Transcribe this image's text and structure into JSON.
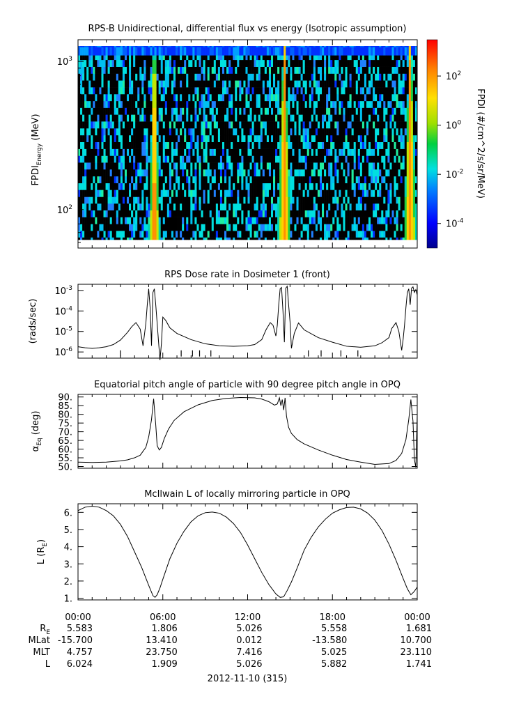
{
  "chart_data": [
    {
      "type": "heatmap",
      "title": "RPS-B  Unidirectional, differential flux vs energy (Isotropic assumption)",
      "ylabel": "FPDI",
      "ylabel_sub": "Energy",
      "ylabel_unit": " (MeV)",
      "yscale": "log",
      "ylim": [
        55,
        1400
      ],
      "yticks": [
        {
          "v": 100,
          "b": "10",
          "e": "2"
        },
        {
          "v": 1000,
          "b": "10",
          "e": "3"
        }
      ],
      "xlim_hours": [
        0,
        24
      ],
      "energy_rows_mev": [
        58,
        65,
        72,
        80,
        89,
        99,
        110,
        122,
        136,
        151,
        168,
        187,
        208,
        231,
        257,
        286,
        318,
        354,
        394,
        438,
        487,
        541,
        602,
        670,
        745,
        828,
        921,
        1025,
        1100,
        1250
      ],
      "belt_crossings_hours": [
        [
          5.4,
          5.0,
          5.8
        ],
        [
          14.6,
          14.1,
          15.05
        ],
        [
          23.5,
          23.05,
          24.0
        ]
      ],
      "colorbar": {
        "label": "FPDI (#/cm^2/s/sr/MeV)",
        "scale": "log",
        "range": [
          1e-05,
          3000.0
        ],
        "ticks": [
          {
            "v": 100.0,
            "b": "10",
            "e": "2"
          },
          {
            "v": 1,
            "b": "10",
            "e": "0"
          },
          {
            "v": 0.01,
            "b": "10",
            "e": "-2"
          },
          {
            "v": 0.0001,
            "b": "10",
            "e": "-4"
          }
        ]
      }
    },
    {
      "type": "line",
      "title": "RPS  Dose rate in Dosimeter 1 (front)",
      "ylabel": "(rads/sec)",
      "yscale": "log",
      "ylim": [
        5e-07,
        0.002
      ],
      "yticks": [
        {
          "v": 0.001,
          "b": "10",
          "e": "-3"
        },
        {
          "v": 0.0001,
          "b": "10",
          "e": "-4"
        },
        {
          "v": 1e-05,
          "b": "10",
          "e": "-5"
        },
        {
          "v": 1e-06,
          "b": "10",
          "e": "-6"
        }
      ],
      "x_hours": [
        0,
        0.5,
        1,
        1.5,
        2,
        2.5,
        3,
        3.5,
        3.8,
        4.1,
        4.4,
        4.6,
        4.8,
        4.9,
        5.0,
        5.1,
        5.2,
        5.3,
        5.4,
        5.5,
        5.6,
        5.7,
        5.8,
        5.9,
        6.0,
        6.2,
        6.5,
        7,
        8,
        9,
        10,
        11,
        12,
        12.5,
        13,
        13.3,
        13.6,
        13.8,
        14.0,
        14.1,
        14.2,
        14.3,
        14.4,
        14.5,
        14.6,
        14.7,
        14.8,
        14.9,
        15.0,
        15.1,
        15.3,
        15.6,
        16,
        17,
        18,
        19,
        20,
        21,
        21.5,
        22,
        22.2,
        22.5,
        22.7,
        22.9,
        23.0,
        23.1,
        23.2,
        23.3,
        23.4,
        23.5,
        23.6,
        23.7,
        23.8,
        23.9,
        24.0
      ],
      "y": [
        1.8e-06,
        1.6e-06,
        1.5e-06,
        1.6e-06,
        1.8e-06,
        2.3e-06,
        3.8e-06,
        9e-06,
        1.7e-05,
        2.7e-05,
        1.3e-05,
        2e-06,
        2.5e-05,
        0.0002,
        0.0012,
        0.00015,
        2e-06,
        0.0008,
        0.0012,
        0.0002,
        2.5e-05,
        3e-06,
        4e-07,
        2.5e-06,
        5e-05,
        3.5e-05,
        1.5e-05,
        8e-06,
        4e-06,
        2.5e-06,
        2e-06,
        1.9e-06,
        2e-06,
        2.3e-06,
        4e-06,
        1.2e-05,
        2.7e-05,
        2e-05,
        6e-06,
        2e-05,
        0.0002,
        0.0012,
        0.0014,
        0.0001,
        3e-06,
        0.0013,
        0.0016,
        0.0002,
        3e-05,
        1.5e-06,
        8e-06,
        2.6e-05,
        1.2e-05,
        5e-06,
        3e-06,
        1.9e-06,
        1.7e-06,
        2e-06,
        2.8e-06,
        5e-06,
        1.4e-05,
        2.7e-05,
        1e-05,
        1.2e-06,
        4e-06,
        2e-05,
        0.00015,
        0.0008,
        0.0012,
        0.0002,
        0.0013,
        0.0015,
        0.0008,
        0.0011,
        0.0006
      ]
    },
    {
      "type": "line",
      "title": "Equatorial pitch angle of particle with 90 degree pitch angle in OPQ",
      "ylabel": "α",
      "ylabel_sub": "Eq",
      "ylabel_unit": " (deg)",
      "ylim": [
        49,
        91.5
      ],
      "yticks": [
        90,
        85,
        80,
        75,
        70,
        65,
        60,
        55,
        50
      ],
      "x_hours": [
        0,
        1,
        2,
        3,
        3.5,
        4,
        4.4,
        4.8,
        5.0,
        5.2,
        5.35,
        5.5,
        5.6,
        5.75,
        5.9,
        6.1,
        6.4,
        6.8,
        7.5,
        8.5,
        9.5,
        10.5,
        11.5,
        12.5,
        13,
        13.5,
        13.9,
        14.1,
        14.25,
        14.35,
        14.45,
        14.55,
        14.65,
        14.75,
        14.9,
        15.1,
        15.5,
        16,
        17,
        18,
        19,
        20,
        21,
        22,
        22.5,
        22.9,
        23.2,
        23.4,
        23.55,
        23.7,
        23.8,
        23.9,
        24.0
      ],
      "y": [
        52.5,
        52.3,
        52.5,
        53.2,
        53.8,
        55,
        56.5,
        61,
        67,
        77,
        89,
        74,
        62,
        59.5,
        61,
        66,
        71.5,
        76.5,
        81.5,
        85.5,
        88,
        89.2,
        89.7,
        89.5,
        88.8,
        87.3,
        85.3,
        86,
        89.5,
        85,
        88.5,
        82.5,
        89.5,
        79,
        72.5,
        69,
        65.5,
        63,
        59.5,
        56.5,
        54,
        52.5,
        51.2,
        51.7,
        53.5,
        57.5,
        65.5,
        77,
        88.5,
        76,
        54,
        49.5,
        80
      ]
    },
    {
      "type": "line",
      "title": "McIlwain L of locally mirroring particle in OPQ",
      "ylabel": "L (R",
      "ylabel_sub": "E",
      "ylabel_unit": ")",
      "ylim": [
        0.9,
        6.5
      ],
      "yticks": [
        6,
        5,
        4,
        3,
        2,
        1
      ],
      "x_hours": [
        0,
        0.5,
        1,
        1.5,
        2,
        2.5,
        3,
        3.5,
        4,
        4.5,
        5,
        5.3,
        5.45,
        5.6,
        5.8,
        6,
        6.5,
        7,
        7.5,
        8,
        8.5,
        9,
        9.5,
        10,
        10.5,
        11,
        11.5,
        12,
        12.5,
        13,
        13.5,
        14,
        14.3,
        14.55,
        14.8,
        15.1,
        15.5,
        16,
        16.5,
        17,
        17.5,
        18,
        18.5,
        19,
        19.5,
        20,
        20.5,
        21,
        21.5,
        22,
        22.5,
        23,
        23.3,
        23.55,
        23.8,
        24.0
      ],
      "y": [
        6.1,
        6.3,
        6.36,
        6.3,
        6.1,
        5.8,
        5.3,
        4.6,
        3.7,
        2.8,
        1.75,
        1.15,
        1.05,
        1.2,
        1.6,
        2.1,
        3.3,
        4.2,
        4.9,
        5.45,
        5.8,
        5.98,
        6.02,
        5.95,
        5.72,
        5.35,
        4.82,
        4.1,
        3.3,
        2.5,
        1.8,
        1.25,
        1.05,
        1.08,
        1.45,
        1.95,
        2.75,
        3.8,
        4.55,
        5.15,
        5.6,
        5.95,
        6.15,
        6.28,
        6.3,
        6.2,
        5.95,
        5.55,
        4.95,
        4.15,
        3.2,
        2.15,
        1.55,
        1.2,
        1.4,
        1.65
      ]
    }
  ],
  "xaxis": {
    "tick_labels": [
      "00:00",
      "06:00",
      "12:00",
      "18:00",
      "00:00"
    ],
    "date_label": "2012-11-10 (315)"
  },
  "ephemeris": [
    {
      "name": "R",
      "sub": "E",
      "values": [
        "5.583",
        "1.806",
        "5.026",
        "5.558",
        "1.681"
      ]
    },
    {
      "name": "MLat",
      "sub": "",
      "values": [
        "-15.700",
        "13.410",
        "0.012",
        "-13.580",
        "10.700"
      ]
    },
    {
      "name": "MLT",
      "sub": "",
      "values": [
        "4.757",
        "23.750",
        "7.416",
        "5.025",
        "23.110"
      ]
    },
    {
      "name": "L",
      "sub": "",
      "values": [
        "6.024",
        "1.909",
        "5.026",
        "5.882",
        "1.741"
      ]
    }
  ]
}
